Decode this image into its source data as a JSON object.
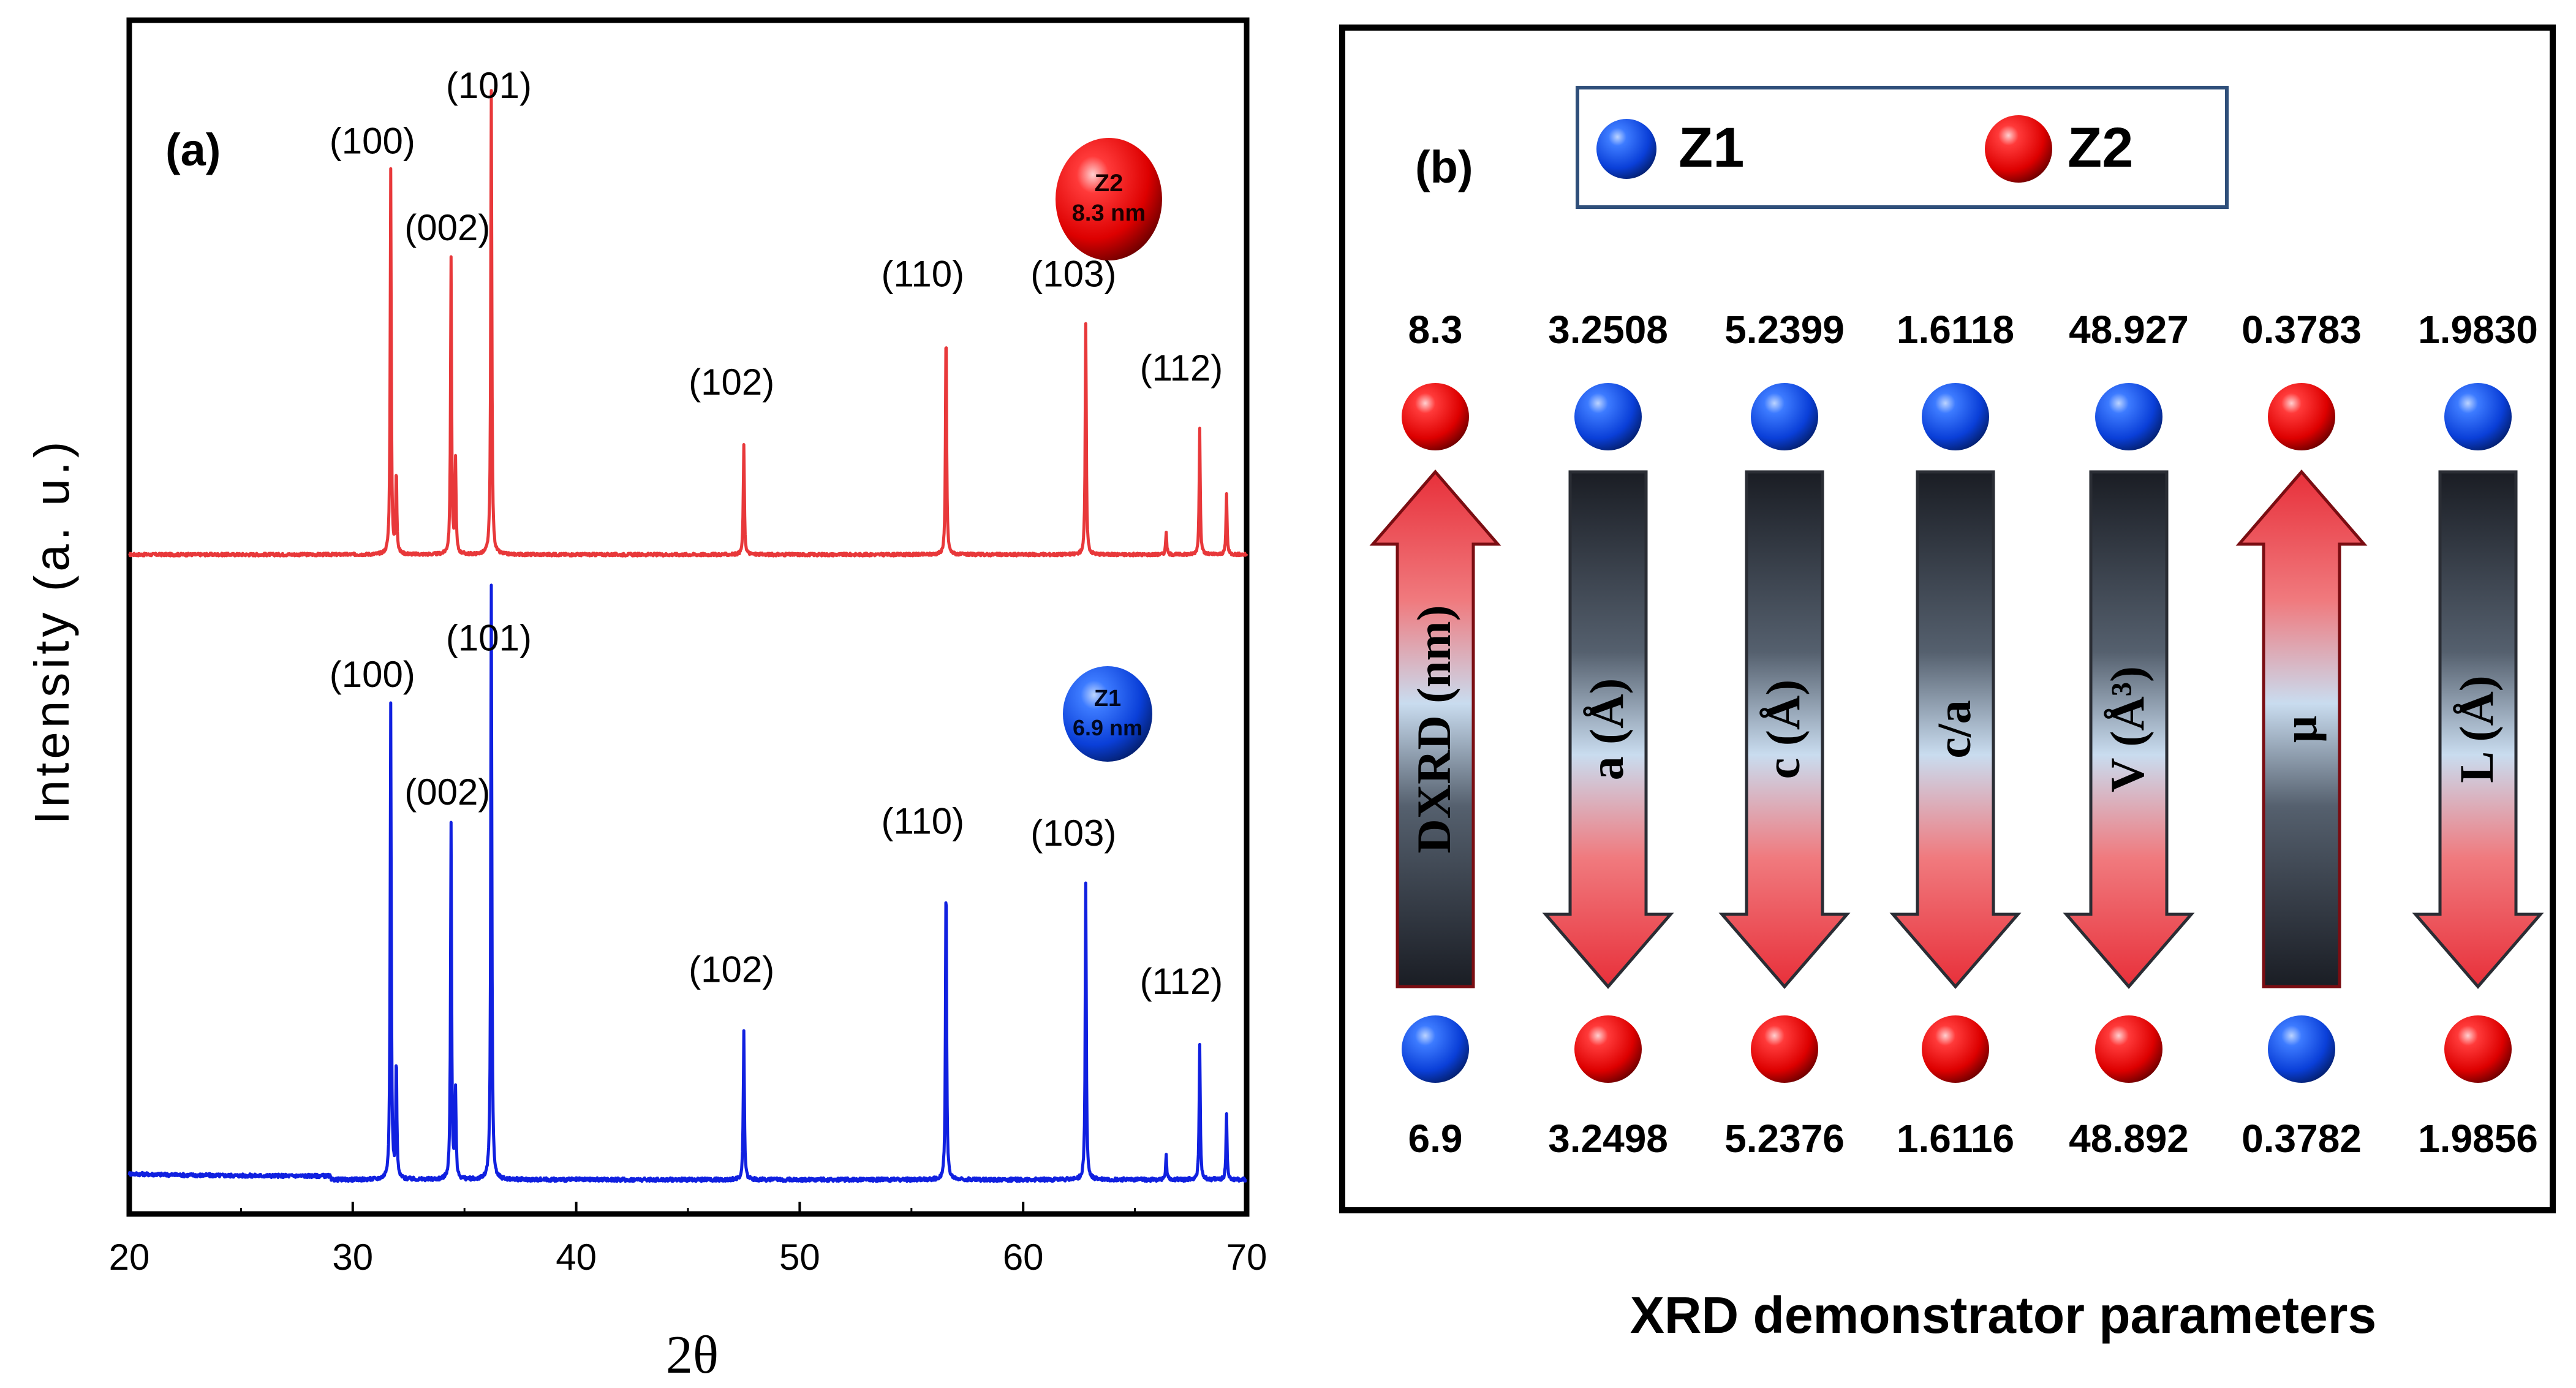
{
  "chart_data": [
    {
      "panel": "(a)",
      "type": "line",
      "title": "",
      "xlabel": "2θ",
      "ylabel": "Intensity (a. u.)",
      "xlim": [
        20,
        70
      ],
      "xticks": [
        20,
        30,
        40,
        50,
        60,
        70
      ],
      "grid": false,
      "series": [
        {
          "name": "Z2",
          "size_label": "8.3 nm",
          "color": "#e8383a",
          "baseline": 0.0,
          "peaks": [
            {
              "x": 31.7,
              "y": 0.83,
              "hkl": "(100)"
            },
            {
              "x": 31.95,
              "y": 0.18,
              "hkl": ""
            },
            {
              "x": 34.4,
              "y": 0.64,
              "hkl": "(002)"
            },
            {
              "x": 34.6,
              "y": 0.2,
              "hkl": ""
            },
            {
              "x": 36.2,
              "y": 1.0,
              "hkl": "(101)"
            },
            {
              "x": 47.5,
              "y": 0.24,
              "hkl": "(102)"
            },
            {
              "x": 56.55,
              "y": 0.5,
              "hkl": "(110)"
            },
            {
              "x": 62.8,
              "y": 0.5,
              "hkl": "(103)"
            },
            {
              "x": 66.4,
              "y": 0.05,
              "hkl": ""
            },
            {
              "x": 67.9,
              "y": 0.27,
              "hkl": "(112)"
            },
            {
              "x": 69.1,
              "y": 0.13,
              "hkl": ""
            }
          ]
        },
        {
          "name": "Z1",
          "size_label": "6.9 nm",
          "color": "#1020e0",
          "baseline": 0.0,
          "peaks": [
            {
              "x": 31.7,
              "y": 0.8,
              "hkl": "(100)"
            },
            {
              "x": 31.95,
              "y": 0.2,
              "hkl": ""
            },
            {
              "x": 34.4,
              "y": 0.6,
              "hkl": "(002)"
            },
            {
              "x": 34.6,
              "y": 0.15,
              "hkl": ""
            },
            {
              "x": 36.2,
              "y": 1.0,
              "hkl": "(101)"
            },
            {
              "x": 47.5,
              "y": 0.25,
              "hkl": "(102)"
            },
            {
              "x": 56.55,
              "y": 0.52,
              "hkl": "(110)"
            },
            {
              "x": 62.8,
              "y": 0.5,
              "hkl": "(103)"
            },
            {
              "x": 66.4,
              "y": 0.04,
              "hkl": ""
            },
            {
              "x": 67.9,
              "y": 0.23,
              "hkl": "(112)"
            },
            {
              "x": 69.1,
              "y": 0.11,
              "hkl": ""
            }
          ]
        }
      ]
    },
    {
      "panel": "(b)",
      "type": "diagram",
      "title": "XRD demonstrator parameters",
      "legend": [
        {
          "label": "Z1",
          "color": "blue"
        },
        {
          "label": "Z2",
          "color": "red"
        }
      ],
      "parameters": [
        {
          "label": "DXRD (nm)",
          "top": "8.3",
          "bottom": "6.9",
          "top_sample": "Z2",
          "bottom_sample": "Z1",
          "direction": "up"
        },
        {
          "label": "a (Å)",
          "top": "3.2508",
          "bottom": "3.2498",
          "top_sample": "Z1",
          "bottom_sample": "Z2",
          "direction": "down"
        },
        {
          "label": "c (Å)",
          "top": "5.2399",
          "bottom": "5.2376",
          "top_sample": "Z1",
          "bottom_sample": "Z2",
          "direction": "down"
        },
        {
          "label": "c/a",
          "top": "1.6118",
          "bottom": "1.6116",
          "top_sample": "Z1",
          "bottom_sample": "Z2",
          "direction": "down"
        },
        {
          "label": "V (Å³)",
          "top": "48.927",
          "bottom": "48.892",
          "top_sample": "Z1",
          "bottom_sample": "Z2",
          "direction": "down"
        },
        {
          "label": "μ",
          "top": "0.3783",
          "bottom": "0.3782",
          "top_sample": "Z2",
          "bottom_sample": "Z1",
          "direction": "up"
        },
        {
          "label": "L (Å)",
          "top": "1.9830",
          "bottom": "1.9856",
          "top_sample": "Z1",
          "bottom_sample": "Z2",
          "direction": "down"
        }
      ]
    }
  ],
  "colors": {
    "z1_line": "#1020e0",
    "z2_line": "#e8383a",
    "arrow_red": "#e8303a",
    "arrow_dark": "#1a1d24"
  }
}
